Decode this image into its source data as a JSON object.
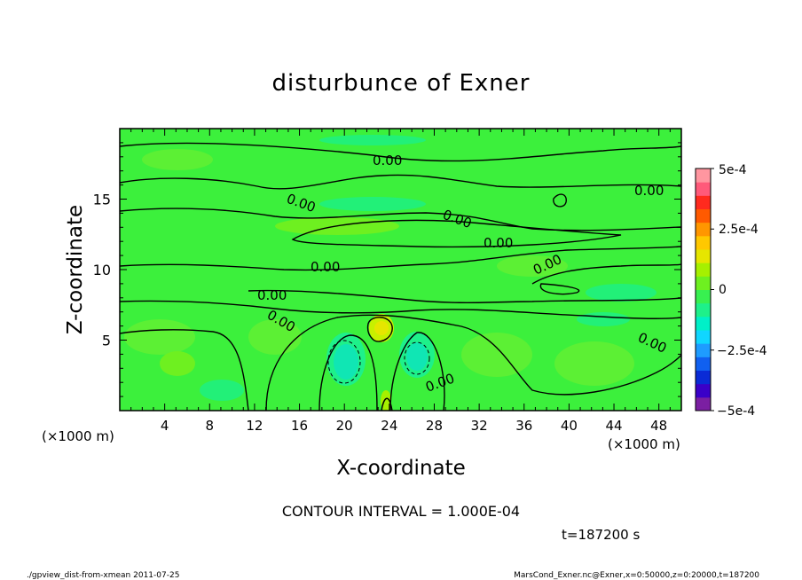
{
  "chart_data": {
    "type": "heatmap",
    "title": "disturbunce of Exner",
    "xlabel": "X-coordinate",
    "ylabel": "Z-coordinate",
    "x_unit": "(×1000 m)",
    "y_unit": "(×1000 m)",
    "xlim": [
      0,
      50
    ],
    "ylim": [
      0,
      20
    ],
    "x_ticks": [
      "4",
      "8",
      "12",
      "16",
      "20",
      "24",
      "28",
      "32",
      "36",
      "40",
      "44",
      "48"
    ],
    "y_ticks": [
      "5",
      "10",
      "15"
    ],
    "colorbar": {
      "range": [
        -0.0005,
        0.0005
      ],
      "labels": [
        "5e-4",
        "2.5e-4",
        "0",
        "−2.5e-4",
        "−5e-4"
      ],
      "colors": [
        "#7b1fa2",
        "#3a00c8",
        "#0a2bd6",
        "#1060f0",
        "#1e9cff",
        "#10d6ff",
        "#00f0c8",
        "#1ef08a",
        "#38f050",
        "#6ef020",
        "#a6f000",
        "#e6e600",
        "#ffc800",
        "#ff9600",
        "#ff5a00",
        "#ff2a1e",
        "#ff5a7a",
        "#ff96a0"
      ]
    },
    "contour_label": "0.00",
    "contour_interval_text": "CONTOUR INTERVAL = 1.000E-04",
    "time_text": "t=187200 s"
  },
  "footer": {
    "left": "./gpview_dist-from-xmean  2011-07-25",
    "right": "MarsCond_Exner.nc@Exner,x=0:50000,z=0:20000,t=187200"
  }
}
